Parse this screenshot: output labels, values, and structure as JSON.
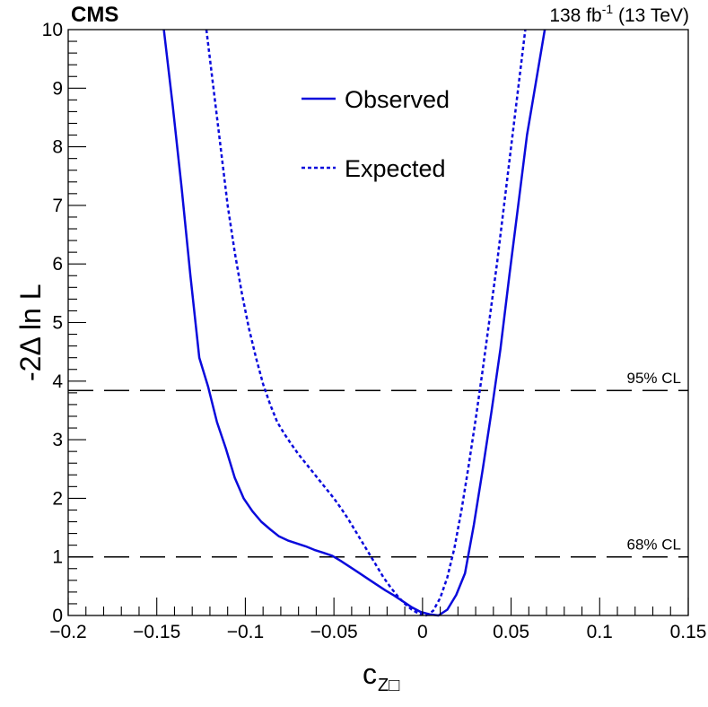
{
  "chart_data": {
    "type": "line",
    "experiment": "CMS",
    "lumi_value": "138 fb",
    "lumi_exp": "-1",
    "energy": " (13 TeV)",
    "xlabel": "c",
    "xlabel_sub": "Z□",
    "ylabel": "-2Δ ln L",
    "xlim": [
      -0.2,
      0.15
    ],
    "ylim": [
      0,
      10
    ],
    "xticks": [
      -0.2,
      -0.15,
      -0.1,
      -0.05,
      0,
      0.05,
      0.1,
      0.15
    ],
    "xtick_labels": [
      "−0.2",
      "−0.15",
      "−0.1",
      "−0.05",
      "0",
      "0.05",
      "0.1",
      "0.15"
    ],
    "yticks": [
      0,
      1,
      2,
      3,
      4,
      5,
      6,
      7,
      8,
      9,
      10
    ],
    "ytick_labels": [
      "0",
      "1",
      "2",
      "3",
      "4",
      "5",
      "6",
      "7",
      "8",
      "9",
      "10"
    ],
    "reference_lines": [
      {
        "y": 3.84,
        "label": "95% CL"
      },
      {
        "y": 1.0,
        "label": "68% CL"
      }
    ],
    "legend_position": "top-center",
    "series": [
      {
        "name": "Observed",
        "style": "solid",
        "color": "#0a0adc",
        "x": [
          -0.146,
          -0.141,
          -0.136,
          -0.131,
          -0.126,
          -0.121,
          -0.116,
          -0.111,
          -0.106,
          -0.101,
          -0.096,
          -0.091,
          -0.086,
          -0.081,
          -0.076,
          -0.071,
          -0.066,
          -0.061,
          -0.056,
          -0.051,
          -0.046,
          -0.041,
          -0.036,
          -0.031,
          -0.026,
          -0.021,
          -0.016,
          -0.011,
          -0.006,
          -0.001,
          0.004,
          0.009,
          0.014,
          0.019,
          0.024,
          0.029,
          0.034,
          0.039,
          0.044,
          0.049,
          0.054,
          0.059,
          0.064,
          0.069
        ],
        "y": [
          10.0,
          8.7,
          7.3,
          5.8,
          4.4,
          3.9,
          3.3,
          2.85,
          2.35,
          2.0,
          1.78,
          1.6,
          1.47,
          1.35,
          1.28,
          1.23,
          1.18,
          1.12,
          1.07,
          1.02,
          0.93,
          0.83,
          0.73,
          0.63,
          0.53,
          0.43,
          0.34,
          0.24,
          0.14,
          0.06,
          0.02,
          0.0,
          0.1,
          0.35,
          0.72,
          1.55,
          2.5,
          3.5,
          4.55,
          5.8,
          7.0,
          8.2,
          9.1,
          10.0
        ]
      },
      {
        "name": "Expected",
        "style": "dotted",
        "color": "#0a0adc",
        "x": [
          -0.122,
          -0.118,
          -0.114,
          -0.11,
          -0.106,
          -0.102,
          -0.098,
          -0.094,
          -0.09,
          -0.086,
          -0.082,
          -0.078,
          -0.074,
          -0.07,
          -0.066,
          -0.062,
          -0.058,
          -0.054,
          -0.05,
          -0.046,
          -0.042,
          -0.038,
          -0.034,
          -0.03,
          -0.026,
          -0.022,
          -0.018,
          -0.014,
          -0.01,
          -0.006,
          -0.002,
          0.002,
          0.006,
          0.01,
          0.014,
          0.018,
          0.022,
          0.026,
          0.03,
          0.034,
          0.038,
          0.042,
          0.046,
          0.05,
          0.054,
          0.058
        ],
        "y": [
          10.0,
          9.0,
          8.0,
          7.0,
          6.2,
          5.5,
          4.9,
          4.4,
          3.95,
          3.6,
          3.3,
          3.1,
          2.92,
          2.75,
          2.6,
          2.45,
          2.3,
          2.15,
          2.0,
          1.83,
          1.65,
          1.45,
          1.25,
          1.05,
          0.85,
          0.65,
          0.48,
          0.33,
          0.2,
          0.1,
          0.03,
          0.0,
          0.08,
          0.3,
          0.65,
          1.15,
          1.8,
          2.55,
          3.35,
          4.2,
          5.1,
          6.0,
          7.0,
          8.0,
          9.0,
          10.0
        ]
      }
    ]
  }
}
